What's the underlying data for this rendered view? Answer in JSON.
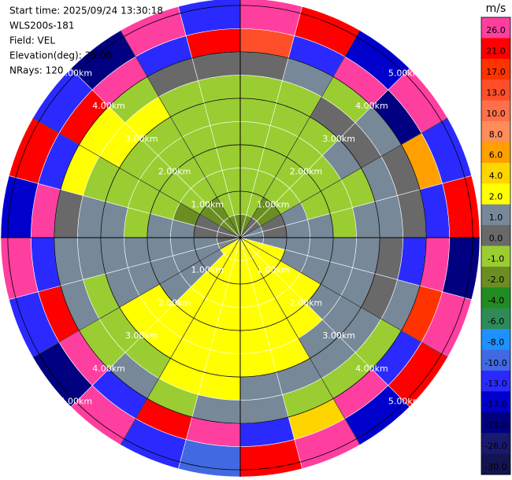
{
  "header": {
    "lines": [
      "Start time: 2025/09/24 13:30:18",
      "WLS200s-181",
      "Field: VEL",
      "Elevation(deg): 35.00",
      "NRays: 120"
    ]
  },
  "chart_data": {
    "type": "ppi",
    "azimuth_step_deg": 15,
    "range_edges_km": [
      0,
      0.5,
      1,
      1.5,
      2,
      2.5,
      3,
      3.5,
      4,
      4.5,
      5.15
    ],
    "rlim": [
      0,
      5.15
    ],
    "rings": [
      {
        "value": 1,
        "label": "1.00km"
      },
      {
        "value": 2,
        "label": "2.00km"
      },
      {
        "value": 3,
        "label": "3.00km"
      },
      {
        "value": 4,
        "label": "4.00km"
      },
      {
        "value": 5,
        "label": "5.00km"
      }
    ],
    "values": [
      [
        -2,
        -1,
        -1,
        -1,
        -1,
        -1,
        -1,
        0,
        13,
        26
      ],
      [
        -2,
        -1,
        -1,
        -1,
        -1,
        -1,
        -1,
        1,
        -13,
        21
      ],
      [
        0,
        -2,
        -1,
        -1,
        -1,
        -1,
        0,
        -1,
        26,
        -17
      ],
      [
        0,
        -2,
        -1,
        -1,
        -1,
        1,
        0,
        1,
        -21,
        26
      ],
      [
        1,
        0,
        1,
        -1,
        -1,
        -1,
        1,
        0,
        6,
        -13
      ],
      [
        1,
        0,
        1,
        1,
        -1,
        1,
        1,
        0,
        -13,
        21
      ],
      [
        1,
        1,
        1,
        1,
        1,
        1,
        0,
        -13,
        26,
        -21
      ],
      [
        2,
        2,
        1,
        1,
        1,
        1,
        0,
        1,
        17,
        26
      ],
      [
        2,
        2,
        2,
        2,
        1,
        1,
        1,
        -1,
        -13,
        21
      ],
      [
        2,
        2,
        2,
        2,
        2,
        1,
        1,
        -1,
        26,
        -17
      ],
      [
        2,
        2,
        2,
        2,
        2,
        2,
        1,
        -1,
        4,
        26
      ],
      [
        2,
        2,
        2,
        2,
        2,
        2,
        1,
        1,
        -13,
        21
      ],
      [
        2,
        2,
        2,
        2,
        2,
        2,
        2,
        1,
        26,
        -10
      ],
      [
        2,
        2,
        2,
        2,
        2,
        2,
        2,
        -1,
        21,
        -13
      ],
      [
        2,
        2,
        2,
        2,
        2,
        2,
        -1,
        1,
        -13,
        26
      ],
      [
        2,
        1,
        1,
        1,
        2,
        2,
        -1,
        -1,
        26,
        -21
      ],
      [
        1,
        1,
        1,
        1,
        1,
        1,
        -1,
        1,
        21,
        -13
      ],
      [
        0,
        1,
        1,
        1,
        1,
        1,
        1,
        1,
        -13,
        26
      ],
      [
        0,
        0,
        1,
        1,
        -1,
        1,
        1,
        0,
        26,
        -17
      ],
      [
        0,
        0,
        -2,
        -1,
        -1,
        -1,
        -1,
        2,
        -13,
        21
      ],
      [
        -2,
        -2,
        -1,
        -1,
        -1,
        -1,
        2,
        2,
        21,
        -13
      ],
      [
        -2,
        -2,
        -1,
        -1,
        -1,
        -1,
        2,
        -1,
        26,
        -21
      ],
      [
        -2,
        -1,
        -1,
        -1,
        -1,
        -1,
        -1,
        0,
        -13,
        26
      ],
      [
        -2,
        -1,
        -1,
        -1,
        -1,
        -1,
        -1,
        0,
        21,
        -13
      ]
    ],
    "colorbar": {
      "unit": "m/s",
      "levels": [
        {
          "value": 26,
          "label": "26.0"
        },
        {
          "value": 21,
          "label": "21.0"
        },
        {
          "value": 17,
          "label": "17.0"
        },
        {
          "value": 13,
          "label": "13.0"
        },
        {
          "value": 10,
          "label": "10.0"
        },
        {
          "value": 8,
          "label": "8.0"
        },
        {
          "value": 6,
          "label": "6.0"
        },
        {
          "value": 4,
          "label": "4.0"
        },
        {
          "value": 2,
          "label": "2.0"
        },
        {
          "value": 1,
          "label": "1.0"
        },
        {
          "value": 0,
          "label": "0.0"
        },
        {
          "value": -1,
          "label": "-1.0"
        },
        {
          "value": -2,
          "label": "-2.0"
        },
        {
          "value": -4,
          "label": "-4.0"
        },
        {
          "value": -6,
          "label": "-6.0"
        },
        {
          "value": -8,
          "label": "-8.0"
        },
        {
          "value": -10,
          "label": "-10.0"
        },
        {
          "value": -13,
          "label": "-13.0"
        },
        {
          "value": -17,
          "label": "-17.0"
        },
        {
          "value": -21,
          "label": "-21.0"
        },
        {
          "value": -26,
          "label": "-26.0"
        },
        {
          "value": -30,
          "label": "-30.0"
        }
      ],
      "colors": [
        "#ff3fa0",
        "#ff0000",
        "#ff3300",
        "#ff4f2a",
        "#ff6f4a",
        "#ff8c5a",
        "#ff9f00",
        "#ffd500",
        "#ffff00",
        "#778899",
        "#696969",
        "#9acd32",
        "#6b8e23",
        "#228b22",
        "#2e8b57",
        "#1e90ff",
        "#4169e1",
        "#2a2aff",
        "#0000cd",
        "#000080",
        "#191970",
        "#141450"
      ]
    }
  }
}
